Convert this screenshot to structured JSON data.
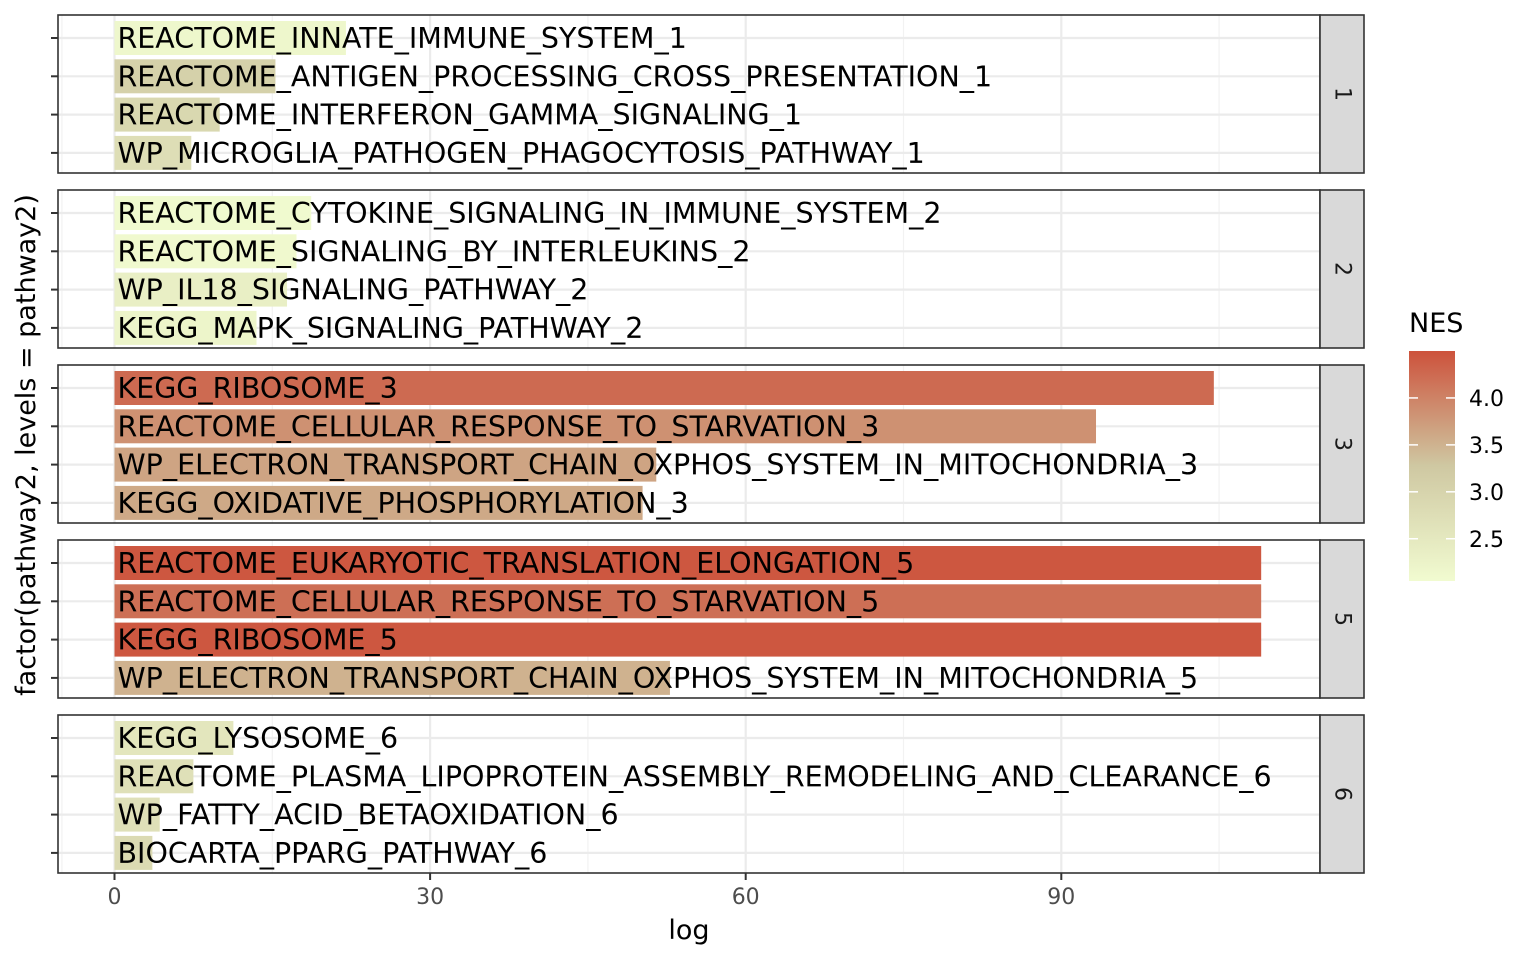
{
  "chart_data": {
    "type": "bar",
    "orientation": "horizontal",
    "title": "",
    "xlabel": "log",
    "ylabel": "factor(pathway2, levels = pathway2)",
    "xlim": [
      -5.3,
      114.5
    ],
    "x_ticks": [
      {
        "value": 0,
        "label": "0"
      },
      {
        "value": 30,
        "label": "30"
      },
      {
        "value": 60,
        "label": "60"
      },
      {
        "value": 90,
        "label": "90"
      }
    ],
    "grid": true,
    "legend": {
      "title": "NES",
      "placement": "right",
      "min": 2.05,
      "max": 4.5,
      "ticks": [
        {
          "value": 4.0,
          "label": "4.0"
        },
        {
          "value": 3.5,
          "label": "3.5"
        },
        {
          "value": 3.0,
          "label": "3.0"
        },
        {
          "value": 2.5,
          "label": "2.5"
        }
      ],
      "low_color": "#f1fbd0",
      "mid_color": "#cfc8a2",
      "high_color": "#cd523c"
    },
    "panels": [
      {
        "strip": "1",
        "bars": [
          {
            "label": "REACTOME_INNATE_IMMUNE_SYSTEM_1",
            "log": 22,
            "nes": 2.15
          },
          {
            "label": "REACTOME_ANTIGEN_PROCESSING_CROSS_PRESENTATION_1",
            "log": 15.3,
            "nes": 3.05
          },
          {
            "label": "REACTOME_INTERFERON_GAMMA_SIGNALING_1",
            "log": 10,
            "nes": 2.9
          },
          {
            "label": "WP_MICROGLIA_PATHOGEN_PHAGOCYTOSIS_PATHWAY_1",
            "log": 7.3,
            "nes": 2.75
          }
        ]
      },
      {
        "strip": "2",
        "bars": [
          {
            "label": "REACTOME_CYTOKINE_SIGNALING_IN_IMMUNE_SYSTEM_2",
            "log": 18.7,
            "nes": 2.08
          },
          {
            "label": "REACTOME_SIGNALING_BY_INTERLEUKINS_2",
            "log": 17.3,
            "nes": 2.1
          },
          {
            "label": "WP_IL18_SIGNALING_PATHWAY_2",
            "log": 16.4,
            "nes": 2.35
          },
          {
            "label": "KEGG_MAPK_SIGNALING_PATHWAY_2",
            "log": 13.5,
            "nes": 2.2
          }
        ]
      },
      {
        "strip": "3",
        "bars": [
          {
            "label": "KEGG_RIBOSOME_3",
            "log": 104.5,
            "nes": 4.25
          },
          {
            "label": "REACTOME_CELLULAR_RESPONSE_TO_STARVATION_3",
            "log": 93.3,
            "nes": 3.85
          },
          {
            "label": "WP_ELECTRON_TRANSPORT_CHAIN_OXPHOS_SYSTEM_IN_MITOCHONDRIA_3",
            "log": 51.5,
            "nes": 3.65
          },
          {
            "label": "KEGG_OXIDATIVE_PHOSPHORYLATION_3",
            "log": 50.2,
            "nes": 3.6
          }
        ]
      },
      {
        "strip": "5",
        "bars": [
          {
            "label": "REACTOME_EUKARYOTIC_TRANSLATION_ELONGATION_5",
            "log": 109,
            "nes": 4.45
          },
          {
            "label": "REACTOME_CELLULAR_RESPONSE_TO_STARVATION_5",
            "log": 109,
            "nes": 4.2
          },
          {
            "label": "KEGG_RIBOSOME_5",
            "log": 109,
            "nes": 4.45
          },
          {
            "label": "WP_ELECTRON_TRANSPORT_CHAIN_OXPHOS_SYSTEM_IN_MITOCHONDRIA_5",
            "log": 52.8,
            "nes": 3.5
          }
        ]
      },
      {
        "strip": "6",
        "bars": [
          {
            "label": "KEGG_LYSOSOME_6",
            "log": 11.3,
            "nes": 2.55
          },
          {
            "label": "REACTOME_PLASMA_LIPOPROTEIN_ASSEMBLY_REMODELING_AND_CLEARANCE_6",
            "log": 7.5,
            "nes": 2.7
          },
          {
            "label": "WP_FATTY_ACID_BETAOXIDATION_6",
            "log": 4.3,
            "nes": 2.7
          },
          {
            "label": "BIOCARTA_PPARG_PATHWAY_6",
            "log": 3.6,
            "nes": 2.85
          }
        ]
      }
    ]
  }
}
